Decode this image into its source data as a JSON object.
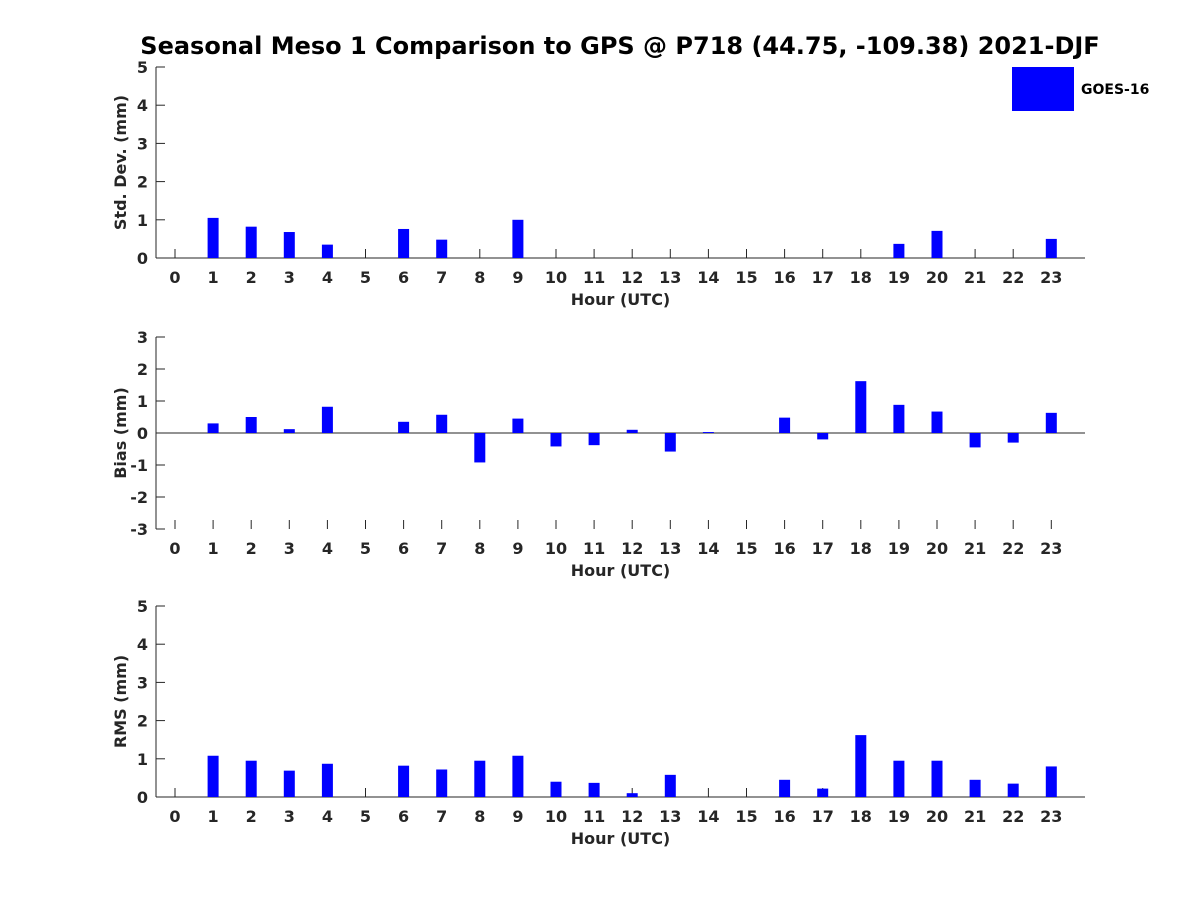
{
  "title": "Seasonal Meso 1 Comparison to GPS @ P718 (44.75, -109.38) 2021-DJF",
  "legend": {
    "label": "GOES-16",
    "color": "#0000ff"
  },
  "chart_data": [
    {
      "type": "bar",
      "ylabel": "Std. Dev. (mm)",
      "xlabel": "Hour (UTC)",
      "ylim": [
        0,
        5
      ],
      "yticks": [
        "0",
        "1",
        "2",
        "3",
        "4",
        "5"
      ],
      "categories": [
        "0",
        "1",
        "2",
        "3",
        "4",
        "5",
        "6",
        "7",
        "8",
        "9",
        "10",
        "11",
        "12",
        "13",
        "14",
        "15",
        "16",
        "17",
        "18",
        "19",
        "20",
        "21",
        "22",
        "23"
      ],
      "series": [
        {
          "name": "GOES-16",
          "values": [
            0,
            1.05,
            0.82,
            0.68,
            0.35,
            0,
            0.76,
            0.48,
            0,
            1.0,
            0,
            0,
            0,
            0,
            0,
            0,
            0,
            0,
            0,
            0.37,
            0.71,
            0,
            0,
            0.5
          ]
        }
      ]
    },
    {
      "type": "bar",
      "ylabel": "Bias (mm)",
      "xlabel": "Hour (UTC)",
      "ylim": [
        -3,
        3
      ],
      "yticks": [
        "-3",
        "-2",
        "-1",
        "0",
        "1",
        "2",
        "3"
      ],
      "categories": [
        "0",
        "1",
        "2",
        "3",
        "4",
        "5",
        "6",
        "7",
        "8",
        "9",
        "10",
        "11",
        "12",
        "13",
        "14",
        "15",
        "16",
        "17",
        "18",
        "19",
        "20",
        "21",
        "22",
        "23"
      ],
      "series": [
        {
          "name": "GOES-16",
          "values": [
            0,
            0.3,
            0.5,
            0.12,
            0.82,
            0,
            0.35,
            0.57,
            -0.92,
            0.45,
            -0.42,
            -0.38,
            0.1,
            -0.58,
            0.03,
            0,
            0.48,
            -0.2,
            1.62,
            0.88,
            0.67,
            -0.45,
            -0.3,
            0.63
          ]
        }
      ]
    },
    {
      "type": "bar",
      "ylabel": "RMS (mm)",
      "xlabel": "Hour (UTC)",
      "ylim": [
        0,
        5
      ],
      "yticks": [
        "0",
        "1",
        "2",
        "3",
        "4",
        "5"
      ],
      "categories": [
        "0",
        "1",
        "2",
        "3",
        "4",
        "5",
        "6",
        "7",
        "8",
        "9",
        "10",
        "11",
        "12",
        "13",
        "14",
        "15",
        "16",
        "17",
        "18",
        "19",
        "20",
        "21",
        "22",
        "23"
      ],
      "series": [
        {
          "name": "GOES-16",
          "values": [
            0,
            1.08,
            0.95,
            0.69,
            0.87,
            0,
            0.82,
            0.72,
            0.95,
            1.08,
            0.4,
            0.37,
            0.1,
            0.58,
            0,
            0,
            0.45,
            0.22,
            1.62,
            0.95,
            0.95,
            0.45,
            0.35,
            0.8
          ]
        }
      ]
    }
  ]
}
